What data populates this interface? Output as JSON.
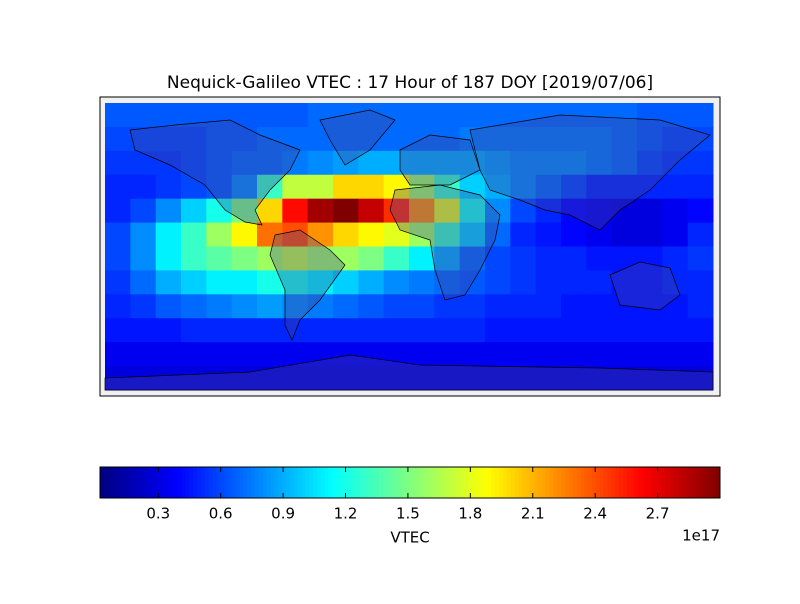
{
  "chart_data": {
    "type": "heatmap",
    "title": "Nequick-Galileo VTEC : 17 Hour of 187 DOY [2019/07/06]",
    "values": [
      [
        0.65,
        0.65,
        0.65,
        0.65,
        0.65,
        0.65,
        0.65,
        0.65,
        0.7,
        0.7,
        0.7,
        0.7,
        0.7,
        0.7,
        0.7,
        0.7,
        0.7,
        0.7,
        0.7,
        0.7,
        0.7,
        0.65,
        0.65,
        0.65
      ],
      [
        0.6,
        0.6,
        0.6,
        0.6,
        0.65,
        0.65,
        0.7,
        0.7,
        0.7,
        0.7,
        0.7,
        0.7,
        0.7,
        0.7,
        0.75,
        0.75,
        0.75,
        0.75,
        0.75,
        0.75,
        0.7,
        0.65,
        0.6,
        0.6
      ],
      [
        0.55,
        0.55,
        0.55,
        0.6,
        0.65,
        0.7,
        0.7,
        0.75,
        0.8,
        0.85,
        0.9,
        0.9,
        0.9,
        0.9,
        0.9,
        0.85,
        0.8,
        0.8,
        0.8,
        0.75,
        0.7,
        0.6,
        0.55,
        0.55
      ],
      [
        0.5,
        0.5,
        0.55,
        0.6,
        0.65,
        0.8,
        1.3,
        1.7,
        1.7,
        2.0,
        2.0,
        1.9,
        1.6,
        1.3,
        1.0,
        0.9,
        0.8,
        0.7,
        0.6,
        0.5,
        0.5,
        0.5,
        0.5,
        0.5
      ],
      [
        0.5,
        0.6,
        0.8,
        1.0,
        1.2,
        1.5,
        2.0,
        2.6,
        2.9,
        3.0,
        2.8,
        2.5,
        2.2,
        1.8,
        1.2,
        0.8,
        0.6,
        0.5,
        0.4,
        0.35,
        0.3,
        0.3,
        0.35,
        0.4
      ],
      [
        0.6,
        0.8,
        1.1,
        1.3,
        1.6,
        1.9,
        2.3,
        2.4,
        2.2,
        2.0,
        1.9,
        1.8,
        1.6,
        1.3,
        1.0,
        0.7,
        0.5,
        0.45,
        0.4,
        0.35,
        0.3,
        0.3,
        0.35,
        0.5
      ],
      [
        0.6,
        0.8,
        1.1,
        1.3,
        1.4,
        1.5,
        1.6,
        1.7,
        1.6,
        1.6,
        1.5,
        1.3,
        1.1,
        0.9,
        0.7,
        0.6,
        0.55,
        0.5,
        0.5,
        0.45,
        0.45,
        0.45,
        0.5,
        0.55
      ],
      [
        0.55,
        0.7,
        0.9,
        1.0,
        1.1,
        1.1,
        1.2,
        1.2,
        1.1,
        1.0,
        0.9,
        0.8,
        0.75,
        0.7,
        0.65,
        0.6,
        0.55,
        0.5,
        0.5,
        0.5,
        0.45,
        0.45,
        0.5,
        0.5
      ],
      [
        0.5,
        0.55,
        0.65,
        0.7,
        0.75,
        0.8,
        0.85,
        0.8,
        0.75,
        0.7,
        0.65,
        0.6,
        0.6,
        0.55,
        0.55,
        0.5,
        0.5,
        0.5,
        0.45,
        0.45,
        0.45,
        0.45,
        0.45,
        0.5
      ],
      [
        0.45,
        0.45,
        0.45,
        0.5,
        0.5,
        0.5,
        0.5,
        0.5,
        0.5,
        0.5,
        0.5,
        0.5,
        0.5,
        0.5,
        0.5,
        0.45,
        0.45,
        0.45,
        0.45,
        0.45,
        0.45,
        0.45,
        0.45,
        0.45
      ],
      [
        0.35,
        0.35,
        0.35,
        0.35,
        0.35,
        0.35,
        0.35,
        0.35,
        0.35,
        0.35,
        0.35,
        0.35,
        0.35,
        0.35,
        0.35,
        0.35,
        0.35,
        0.35,
        0.35,
        0.35,
        0.35,
        0.35,
        0.35,
        0.35
      ],
      [
        0.3,
        0.3,
        0.3,
        0.3,
        0.3,
        0.3,
        0.3,
        0.3,
        0.3,
        0.3,
        0.3,
        0.3,
        0.3,
        0.3,
        0.3,
        0.3,
        0.3,
        0.3,
        0.3,
        0.3,
        0.3,
        0.3,
        0.3,
        0.3
      ]
    ],
    "colormap": "jet",
    "colorbar": {
      "lim": [
        0.02,
        3.0
      ],
      "ticks": [
        0.3,
        0.6,
        0.9,
        1.2,
        1.5,
        1.8,
        2.1,
        2.4,
        2.7
      ],
      "label": "VTEC",
      "offset_label": "1e17"
    }
  }
}
